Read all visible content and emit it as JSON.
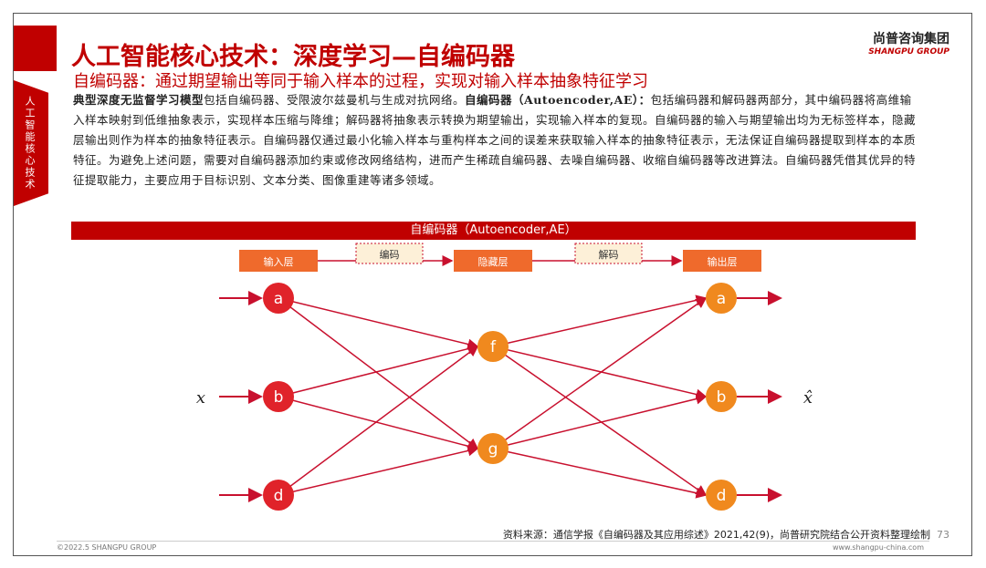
{
  "sidebar": {
    "label": "人工智能核心技术"
  },
  "header": {
    "title": "人工智能核心技术：深度学习—自编码器",
    "subtitle": "自编码器：通过期望输出等同于输入样本的过程，实现对输入样本抽象特征学习"
  },
  "logo": {
    "cn": "尚普咨询集团",
    "en": "SHANGPU GROUP"
  },
  "body": {
    "bold1": "典型深度无监督学习模型",
    "text1": "包括自编码器、受限波尔兹曼机与生成对抗网络。",
    "bold2": "自编码器（Autoencoder,AE）：",
    "text2": "包括编码器和解码器两部分，其中编码器将高维输入样本映射到低维抽象表示，实现样本压缩与降维；解码器将抽象表示转换为期望输出，实现输入样本的复现。自编码器的输入与期望输出均为无标签样本，隐藏层输出则作为样本的抽象特征表示。自编码器仅通过最小化输入样本与重构样本之间的误差来获取输入样本的抽象特征表示，无法保证自编码器提取到样本的本质特征。为避免上述问题，需要对自编码器添加约束或修改网络结构，进而产生稀疏自编码器、去噪自编码器、收缩自编码器等改进算法。自编码器凭借其优异的特征提取能力，主要应用于目标识别、文本分类、图像重建等诸多领域。"
  },
  "diagram": {
    "banner": "自编码器（Autoencoder,AE）",
    "layers": [
      "输入层",
      "隐藏层",
      "输出层"
    ],
    "steps": [
      "编码",
      "解码"
    ],
    "input_nodes": [
      "a",
      "b",
      "d"
    ],
    "hidden_nodes": [
      "f",
      "g"
    ],
    "output_nodes": [
      "a",
      "b",
      "d"
    ],
    "input_label": "x",
    "output_label": "x̂",
    "colors": {
      "input": "#e0232a",
      "output": "#f0891e",
      "box": "#ef6a2c",
      "edge": "#c8102e",
      "step_bg": "#fdf0d8"
    }
  },
  "footer": {
    "source": "资料来源：通信学报《自编码器及其应用综述》2021,42(9)，尚普研究院结合公开资料整理绘制",
    "page": "73",
    "copyright": "©2022.5 SHANGPU GROUP",
    "website": "www.shangpu-china.com"
  }
}
